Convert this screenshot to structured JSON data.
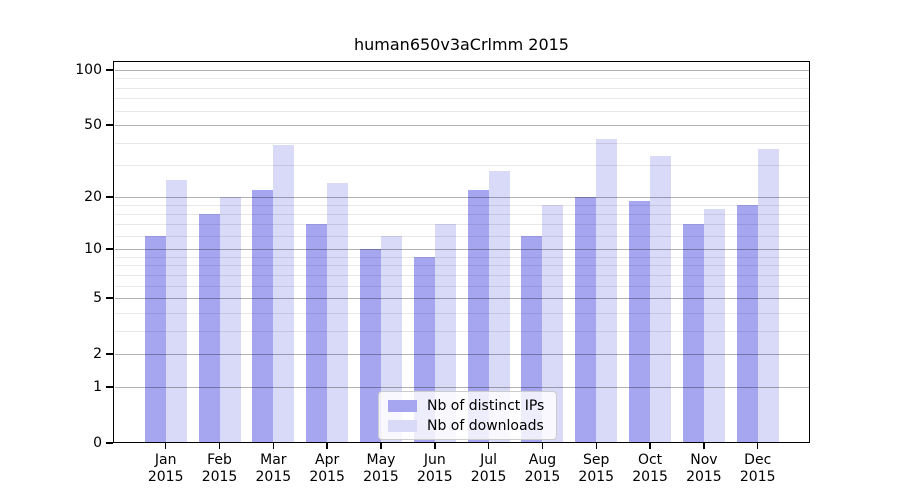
{
  "figure": {
    "background": "#ffffff",
    "colors": {
      "bar_distinct_ips": "#a5a5f0",
      "bar_downloads": "#d9d9f8",
      "major_gridline": "#b2b2b2",
      "minor_gridline": "#e8e8e8",
      "axis": "#000000",
      "legend_border": "#cccccc"
    }
  },
  "chart_data": {
    "type": "bar",
    "title": "human650v3aCrlmm 2015",
    "categories": [
      "Jan 2015",
      "Feb 2015",
      "Mar 2015",
      "Apr 2015",
      "May 2015",
      "Jun 2015",
      "Jul 2015",
      "Aug 2015",
      "Sep 2015",
      "Oct 2015",
      "Nov 2015",
      "Dec 2015"
    ],
    "months": [
      "Jan",
      "Feb",
      "Mar",
      "Apr",
      "May",
      "Jun",
      "Jul",
      "Aug",
      "Sep",
      "Oct",
      "Nov",
      "Dec"
    ],
    "x_label_year": "2015",
    "series": [
      {
        "name": "Nb of distinct IPs",
        "color": "#a5a5f0",
        "values": [
          12,
          16,
          22,
          14,
          10,
          9,
          22,
          12,
          20,
          19,
          14,
          18
        ]
      },
      {
        "name": "Nb of downloads",
        "color": "#d9d9f8",
        "values": [
          25,
          20,
          39,
          24,
          12,
          14,
          28,
          18,
          42,
          34,
          17,
          37
        ]
      }
    ],
    "xlabel": "",
    "ylabel": "",
    "y_axis": {
      "scale": "log1p",
      "ticks": [
        100,
        50,
        20,
        10,
        5,
        2,
        1,
        0
      ],
      "minor_gridlines": [
        90,
        80,
        70,
        60,
        40,
        30,
        18,
        16,
        14,
        12,
        9,
        8,
        7,
        6,
        4,
        3
      ],
      "ylim": [
        0,
        113
      ]
    },
    "grid": "on",
    "legend_position": "lower center inside"
  }
}
